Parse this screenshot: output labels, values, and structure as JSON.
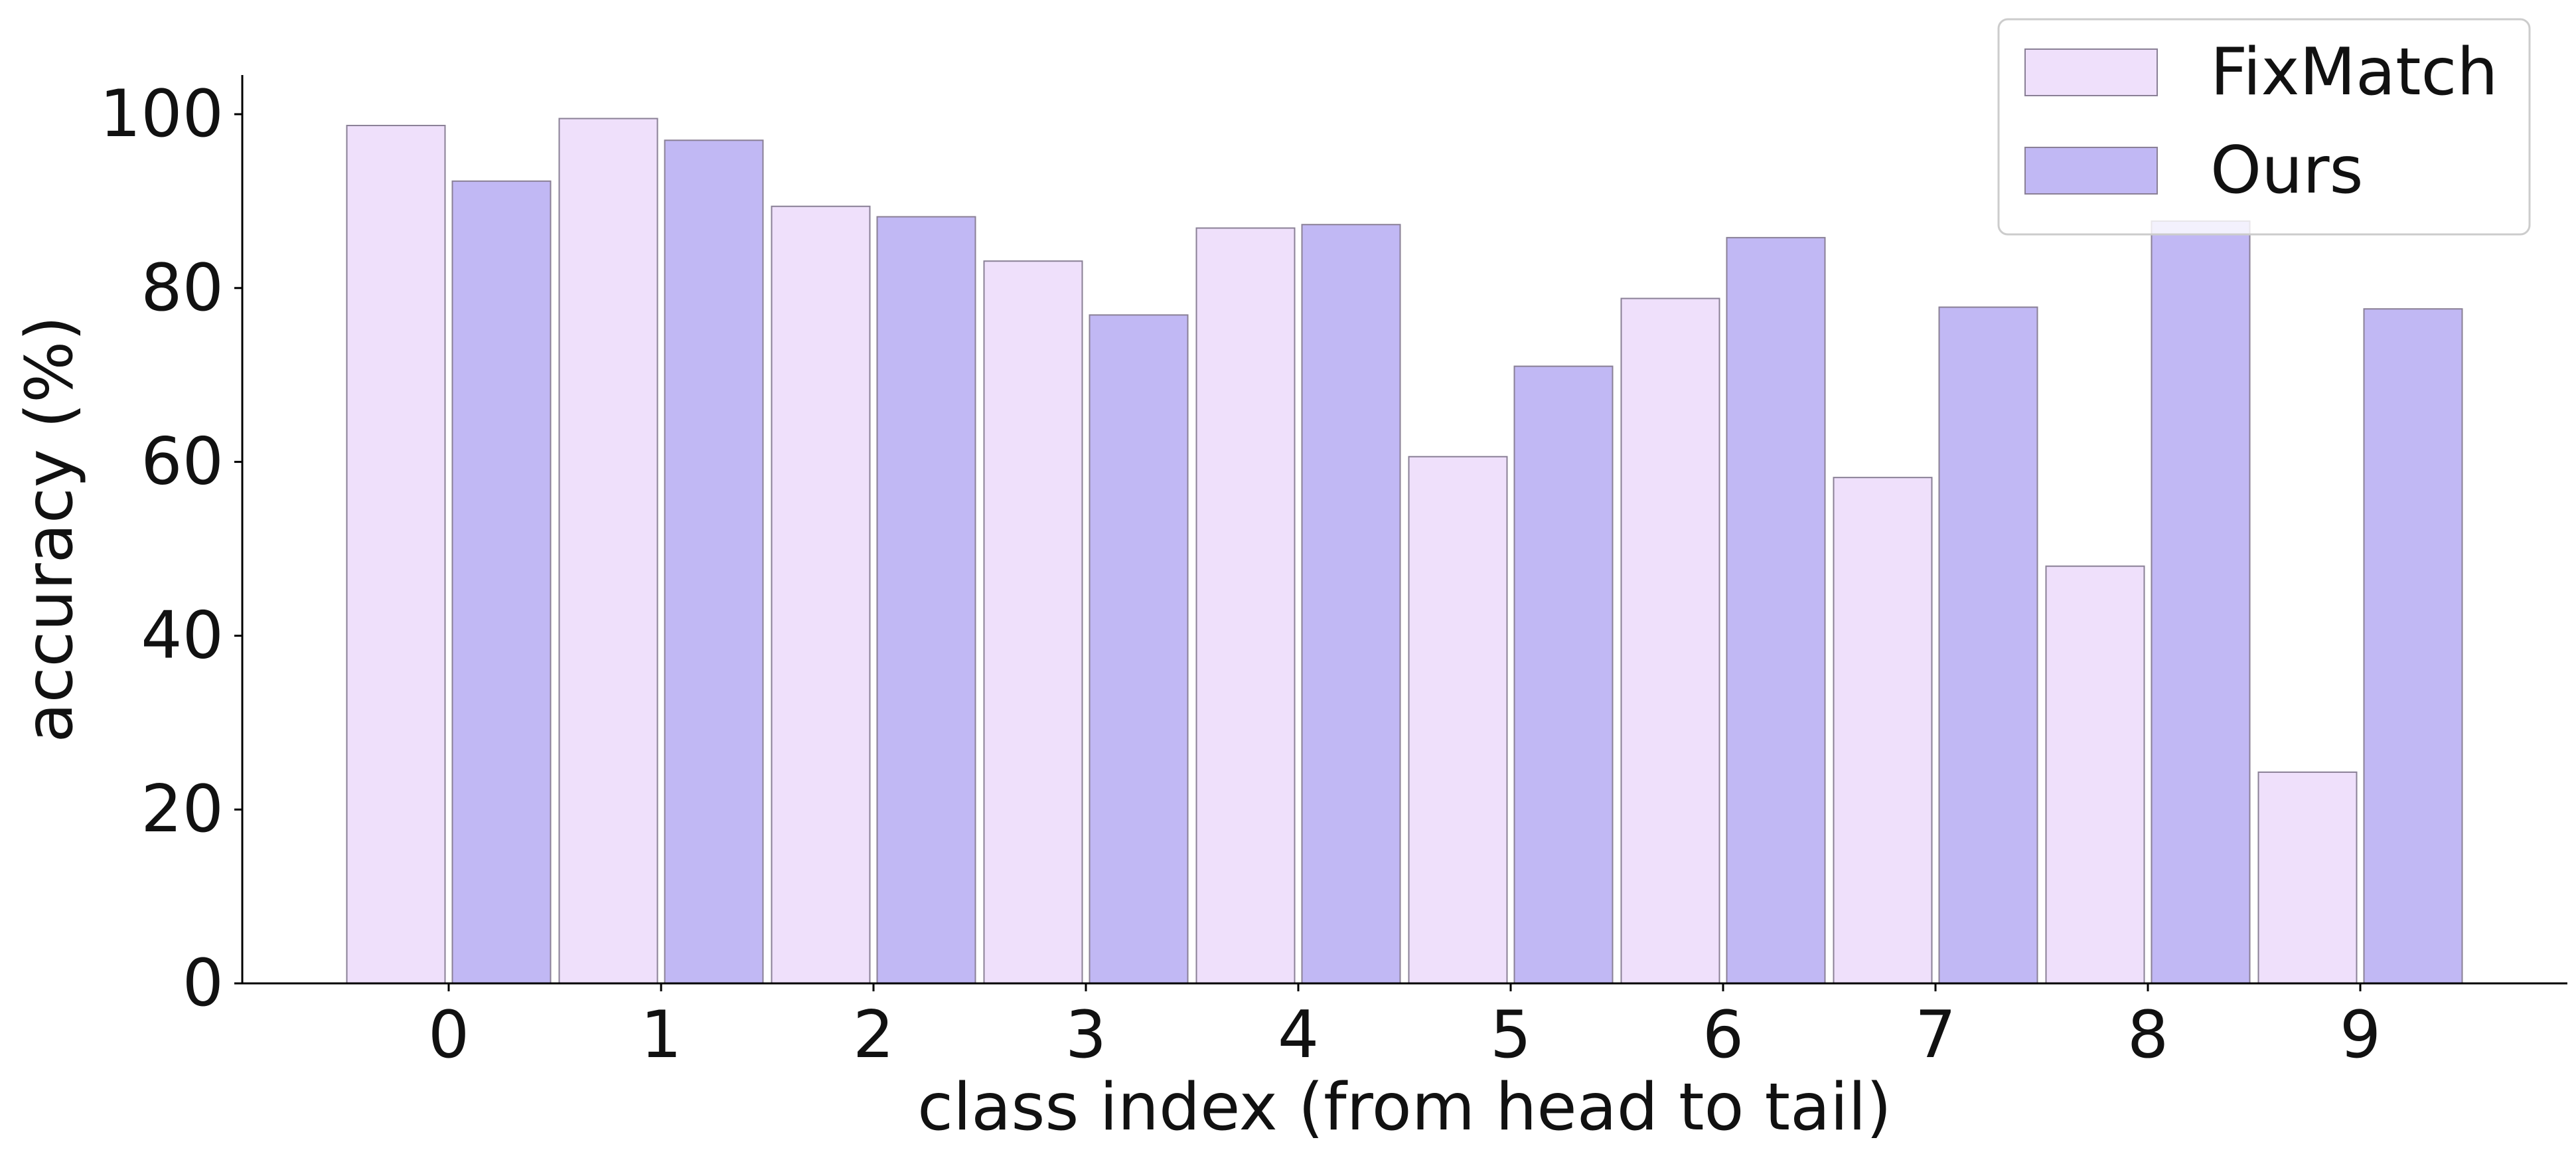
{
  "chart_data": {
    "type": "bar",
    "categories": [
      "0",
      "1",
      "2",
      "3",
      "4",
      "5",
      "6",
      "7",
      "8",
      "9"
    ],
    "series": [
      {
        "name": "FixMatch",
        "color": "#efe0fb",
        "values": [
          98.7,
          99.5,
          89.4,
          83.1,
          86.9,
          60.6,
          78.8,
          58.2,
          48.0,
          24.3
        ]
      },
      {
        "name": "Ours",
        "color": "#c1b8f4",
        "values": [
          92.3,
          97.0,
          88.2,
          76.9,
          87.3,
          71.0,
          85.8,
          77.8,
          87.7,
          77.6
        ]
      }
    ],
    "title": "",
    "xlabel": "class index (from head to tail)",
    "ylabel": "accuracy (%)",
    "ylim": [
      0,
      104.5
    ],
    "yticks": [
      0,
      20,
      40,
      60,
      80,
      100
    ],
    "grid": false,
    "legend_position": "top-right",
    "bar_edge_color": "#8a8096"
  }
}
